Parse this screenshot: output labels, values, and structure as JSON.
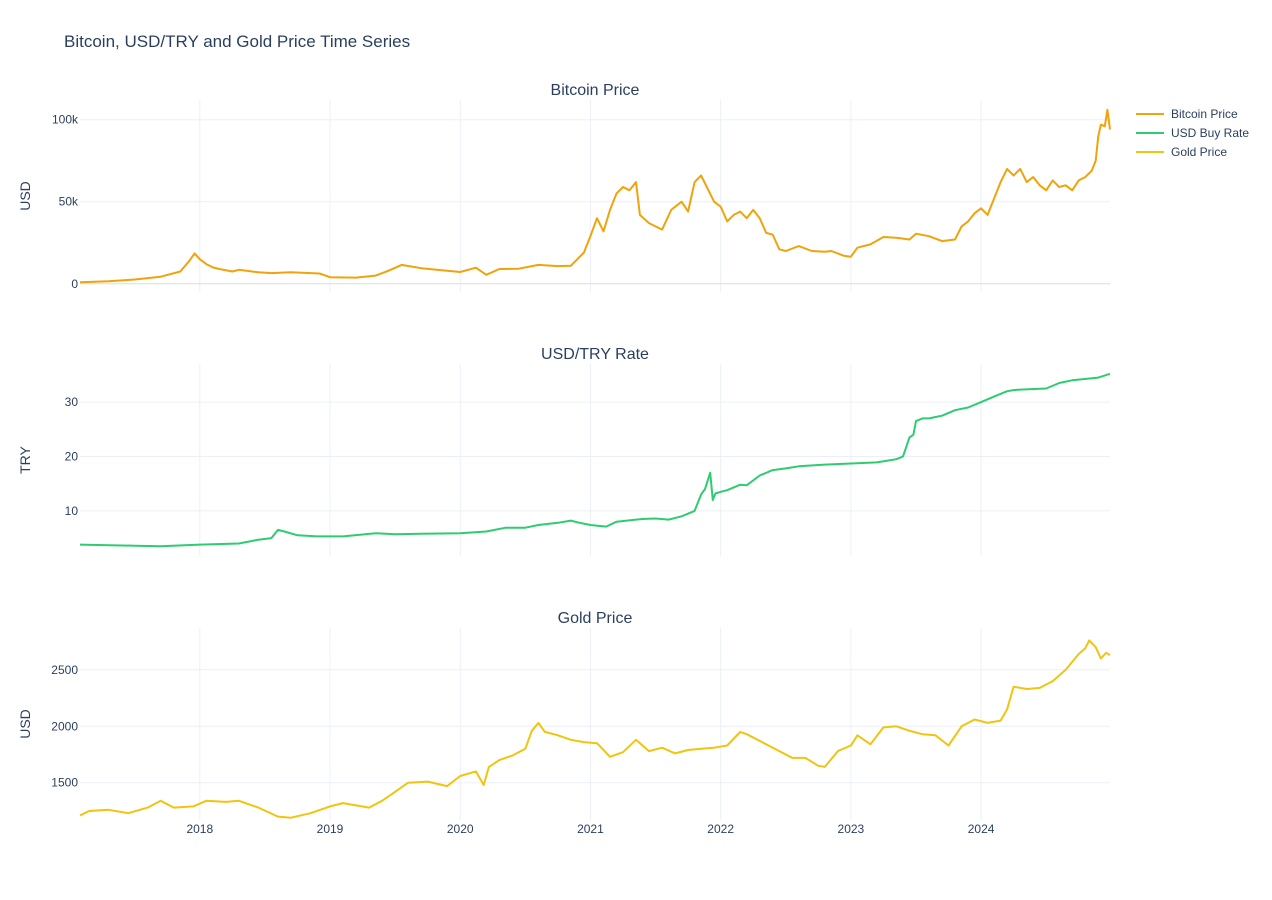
{
  "title": "Bitcoin, USD/TRY and Gold Price Time Series",
  "legend": {
    "placement": "top-right",
    "items": [
      {
        "label": "Bitcoin Price",
        "color": "#f0a30a"
      },
      {
        "label": "USD Buy Rate",
        "color": "#2ecc71"
      },
      {
        "label": "Gold Price",
        "color": "#f1c40f"
      }
    ]
  },
  "x_tick_labels": [
    "2018",
    "2019",
    "2020",
    "2021",
    "2022",
    "2023",
    "2024"
  ],
  "chart_data": [
    {
      "type": "line",
      "title": "Bitcoin Price",
      "ylabel": "USD",
      "xlim": [
        2017.08,
        2024.99
      ],
      "ylim": [
        -5000,
        112000
      ],
      "yticks": [
        0,
        50000,
        100000
      ],
      "ytick_labels": [
        "0",
        "50k",
        "100k"
      ],
      "grid": true,
      "series": [
        {
          "name": "Bitcoin Price",
          "color": "#f0a30a",
          "x": [
            2017.08,
            2017.3,
            2017.5,
            2017.7,
            2017.85,
            2017.92,
            2017.96,
            2018.0,
            2018.05,
            2018.1,
            2018.15,
            2018.25,
            2018.3,
            2018.45,
            2018.55,
            2018.7,
            2018.85,
            2018.92,
            2019.0,
            2019.2,
            2019.35,
            2019.45,
            2019.55,
            2019.7,
            2019.9,
            2020.0,
            2020.12,
            2020.2,
            2020.3,
            2020.45,
            2020.6,
            2020.75,
            2020.85,
            2020.95,
            2021.0,
            2021.05,
            2021.1,
            2021.15,
            2021.2,
            2021.25,
            2021.3,
            2021.35,
            2021.38,
            2021.45,
            2021.55,
            2021.62,
            2021.7,
            2021.75,
            2021.8,
            2021.85,
            2021.9,
            2021.95,
            2022.0,
            2022.05,
            2022.1,
            2022.15,
            2022.2,
            2022.25,
            2022.3,
            2022.35,
            2022.4,
            2022.45,
            2022.5,
            2022.6,
            2022.7,
            2022.8,
            2022.85,
            2022.95,
            2023.0,
            2023.05,
            2023.15,
            2023.25,
            2023.35,
            2023.45,
            2023.5,
            2023.6,
            2023.7,
            2023.8,
            2023.85,
            2023.9,
            2023.95,
            2024.0,
            2024.05,
            2024.1,
            2024.15,
            2024.2,
            2024.25,
            2024.3,
            2024.35,
            2024.4,
            2024.45,
            2024.5,
            2024.55,
            2024.6,
            2024.65,
            2024.7,
            2024.75,
            2024.8,
            2024.85,
            2024.88,
            2024.9,
            2024.92,
            2024.95,
            2024.97,
            2024.99
          ],
          "y": [
            1000,
            1500,
            2600,
            4300,
            7500,
            14000,
            18500,
            15000,
            12000,
            10000,
            9000,
            7500,
            8500,
            7000,
            6500,
            7000,
            6500,
            6300,
            4000,
            3800,
            5000,
            8000,
            11500,
            9500,
            8000,
            7200,
            9800,
            5500,
            9000,
            9200,
            11500,
            10800,
            11000,
            19000,
            29000,
            40000,
            32000,
            45000,
            55000,
            59000,
            57000,
            62000,
            42000,
            37000,
            33000,
            45000,
            50000,
            44000,
            62000,
            66000,
            58000,
            50000,
            47000,
            38000,
            42000,
            44000,
            40000,
            45000,
            40000,
            31000,
            30000,
            21000,
            20000,
            23000,
            20000,
            19500,
            20000,
            17000,
            16500,
            22000,
            24000,
            28500,
            28000,
            27000,
            30500,
            29000,
            26000,
            27000,
            35000,
            38000,
            43000,
            46000,
            42000,
            52000,
            62000,
            70000,
            66000,
            70000,
            62000,
            65000,
            60000,
            57000,
            63000,
            59000,
            60000,
            57000,
            63000,
            65000,
            69000,
            75000,
            90000,
            97000,
            96000,
            106000,
            94000
          ]
        }
      ]
    },
    {
      "type": "line",
      "title": "USD/TRY Rate",
      "ylabel": "TRY",
      "xlim": [
        2017.08,
        2024.99
      ],
      "ylim": [
        1.7,
        37
      ],
      "yticks": [
        10,
        20,
        30
      ],
      "ytick_labels": [
        "10",
        "20",
        "30"
      ],
      "grid": true,
      "series": [
        {
          "name": "USD Buy Rate",
          "color": "#2ecc71",
          "x": [
            2017.08,
            2017.5,
            2017.7,
            2018.0,
            2018.3,
            2018.45,
            2018.55,
            2018.6,
            2018.65,
            2018.75,
            2018.9,
            2019.1,
            2019.35,
            2019.5,
            2019.7,
            2020.0,
            2020.2,
            2020.35,
            2020.5,
            2020.6,
            2020.75,
            2020.85,
            2020.9,
            2021.0,
            2021.12,
            2021.2,
            2021.4,
            2021.5,
            2021.6,
            2021.7,
            2021.8,
            2021.85,
            2021.88,
            2021.92,
            2021.94,
            2021.96,
            2022.0,
            2022.05,
            2022.15,
            2022.2,
            2022.3,
            2022.4,
            2022.5,
            2022.6,
            2022.8,
            2023.0,
            2023.2,
            2023.35,
            2023.4,
            2023.45,
            2023.48,
            2023.5,
            2023.55,
            2023.6,
            2023.7,
            2023.8,
            2023.9,
            2024.0,
            2024.1,
            2024.2,
            2024.25,
            2024.3,
            2024.5,
            2024.6,
            2024.7,
            2024.9,
            2024.99
          ],
          "y": [
            3.8,
            3.6,
            3.5,
            3.8,
            4.0,
            4.7,
            5.0,
            6.5,
            6.2,
            5.5,
            5.3,
            5.3,
            5.9,
            5.7,
            5.8,
            5.9,
            6.2,
            6.9,
            6.9,
            7.4,
            7.8,
            8.2,
            7.9,
            7.4,
            7.1,
            8.0,
            8.5,
            8.6,
            8.4,
            9.0,
            10.0,
            13.0,
            14.0,
            17.0,
            12.0,
            13.2,
            13.5,
            13.8,
            14.8,
            14.7,
            16.5,
            17.5,
            17.8,
            18.2,
            18.5,
            18.7,
            18.9,
            19.5,
            20.0,
            23.5,
            24.0,
            26.5,
            27.0,
            27.0,
            27.5,
            28.5,
            29.0,
            30.0,
            31.0,
            32.0,
            32.2,
            32.3,
            32.5,
            33.5,
            34.0,
            34.5,
            35.2
          ]
        }
      ]
    },
    {
      "type": "line",
      "title": "Gold Price",
      "ylabel": "USD",
      "xlim": [
        2017.08,
        2024.99
      ],
      "ylim": [
        1170,
        2870
      ],
      "yticks": [
        1500,
        2000,
        2500
      ],
      "ytick_labels": [
        "1500",
        "2000",
        "2500"
      ],
      "grid": true,
      "series": [
        {
          "name": "Gold Price",
          "color": "#f1c40f",
          "x": [
            2017.08,
            2017.15,
            2017.3,
            2017.45,
            2017.6,
            2017.7,
            2017.8,
            2017.95,
            2018.05,
            2018.2,
            2018.3,
            2018.45,
            2018.6,
            2018.7,
            2018.85,
            2019.0,
            2019.1,
            2019.3,
            2019.4,
            2019.5,
            2019.6,
            2019.75,
            2019.9,
            2020.0,
            2020.12,
            2020.18,
            2020.22,
            2020.3,
            2020.4,
            2020.5,
            2020.55,
            2020.6,
            2020.65,
            2020.75,
            2020.85,
            2020.95,
            2021.05,
            2021.15,
            2021.25,
            2021.35,
            2021.45,
            2021.55,
            2021.65,
            2021.75,
            2021.85,
            2021.95,
            2022.05,
            2022.15,
            2022.2,
            2022.3,
            2022.45,
            2022.55,
            2022.65,
            2022.75,
            2022.8,
            2022.9,
            2023.0,
            2023.05,
            2023.15,
            2023.25,
            2023.35,
            2023.45,
            2023.55,
            2023.65,
            2023.75,
            2023.85,
            2023.95,
            2024.05,
            2024.15,
            2024.2,
            2024.25,
            2024.35,
            2024.45,
            2024.55,
            2024.65,
            2024.75,
            2024.8,
            2024.83,
            2024.88,
            2024.92,
            2024.96,
            2024.99
          ],
          "y": [
            1210,
            1250,
            1260,
            1230,
            1280,
            1340,
            1280,
            1290,
            1340,
            1330,
            1340,
            1280,
            1200,
            1190,
            1230,
            1290,
            1320,
            1280,
            1340,
            1420,
            1500,
            1510,
            1470,
            1560,
            1600,
            1480,
            1640,
            1700,
            1740,
            1800,
            1960,
            2030,
            1950,
            1920,
            1880,
            1860,
            1850,
            1730,
            1770,
            1880,
            1780,
            1810,
            1760,
            1790,
            1800,
            1810,
            1830,
            1950,
            1930,
            1870,
            1780,
            1720,
            1720,
            1650,
            1640,
            1780,
            1830,
            1920,
            1840,
            1990,
            2000,
            1960,
            1930,
            1920,
            1830,
            2000,
            2060,
            2030,
            2050,
            2150,
            2350,
            2330,
            2340,
            2400,
            2500,
            2640,
            2690,
            2760,
            2700,
            2600,
            2650,
            2630
          ]
        }
      ]
    }
  ]
}
